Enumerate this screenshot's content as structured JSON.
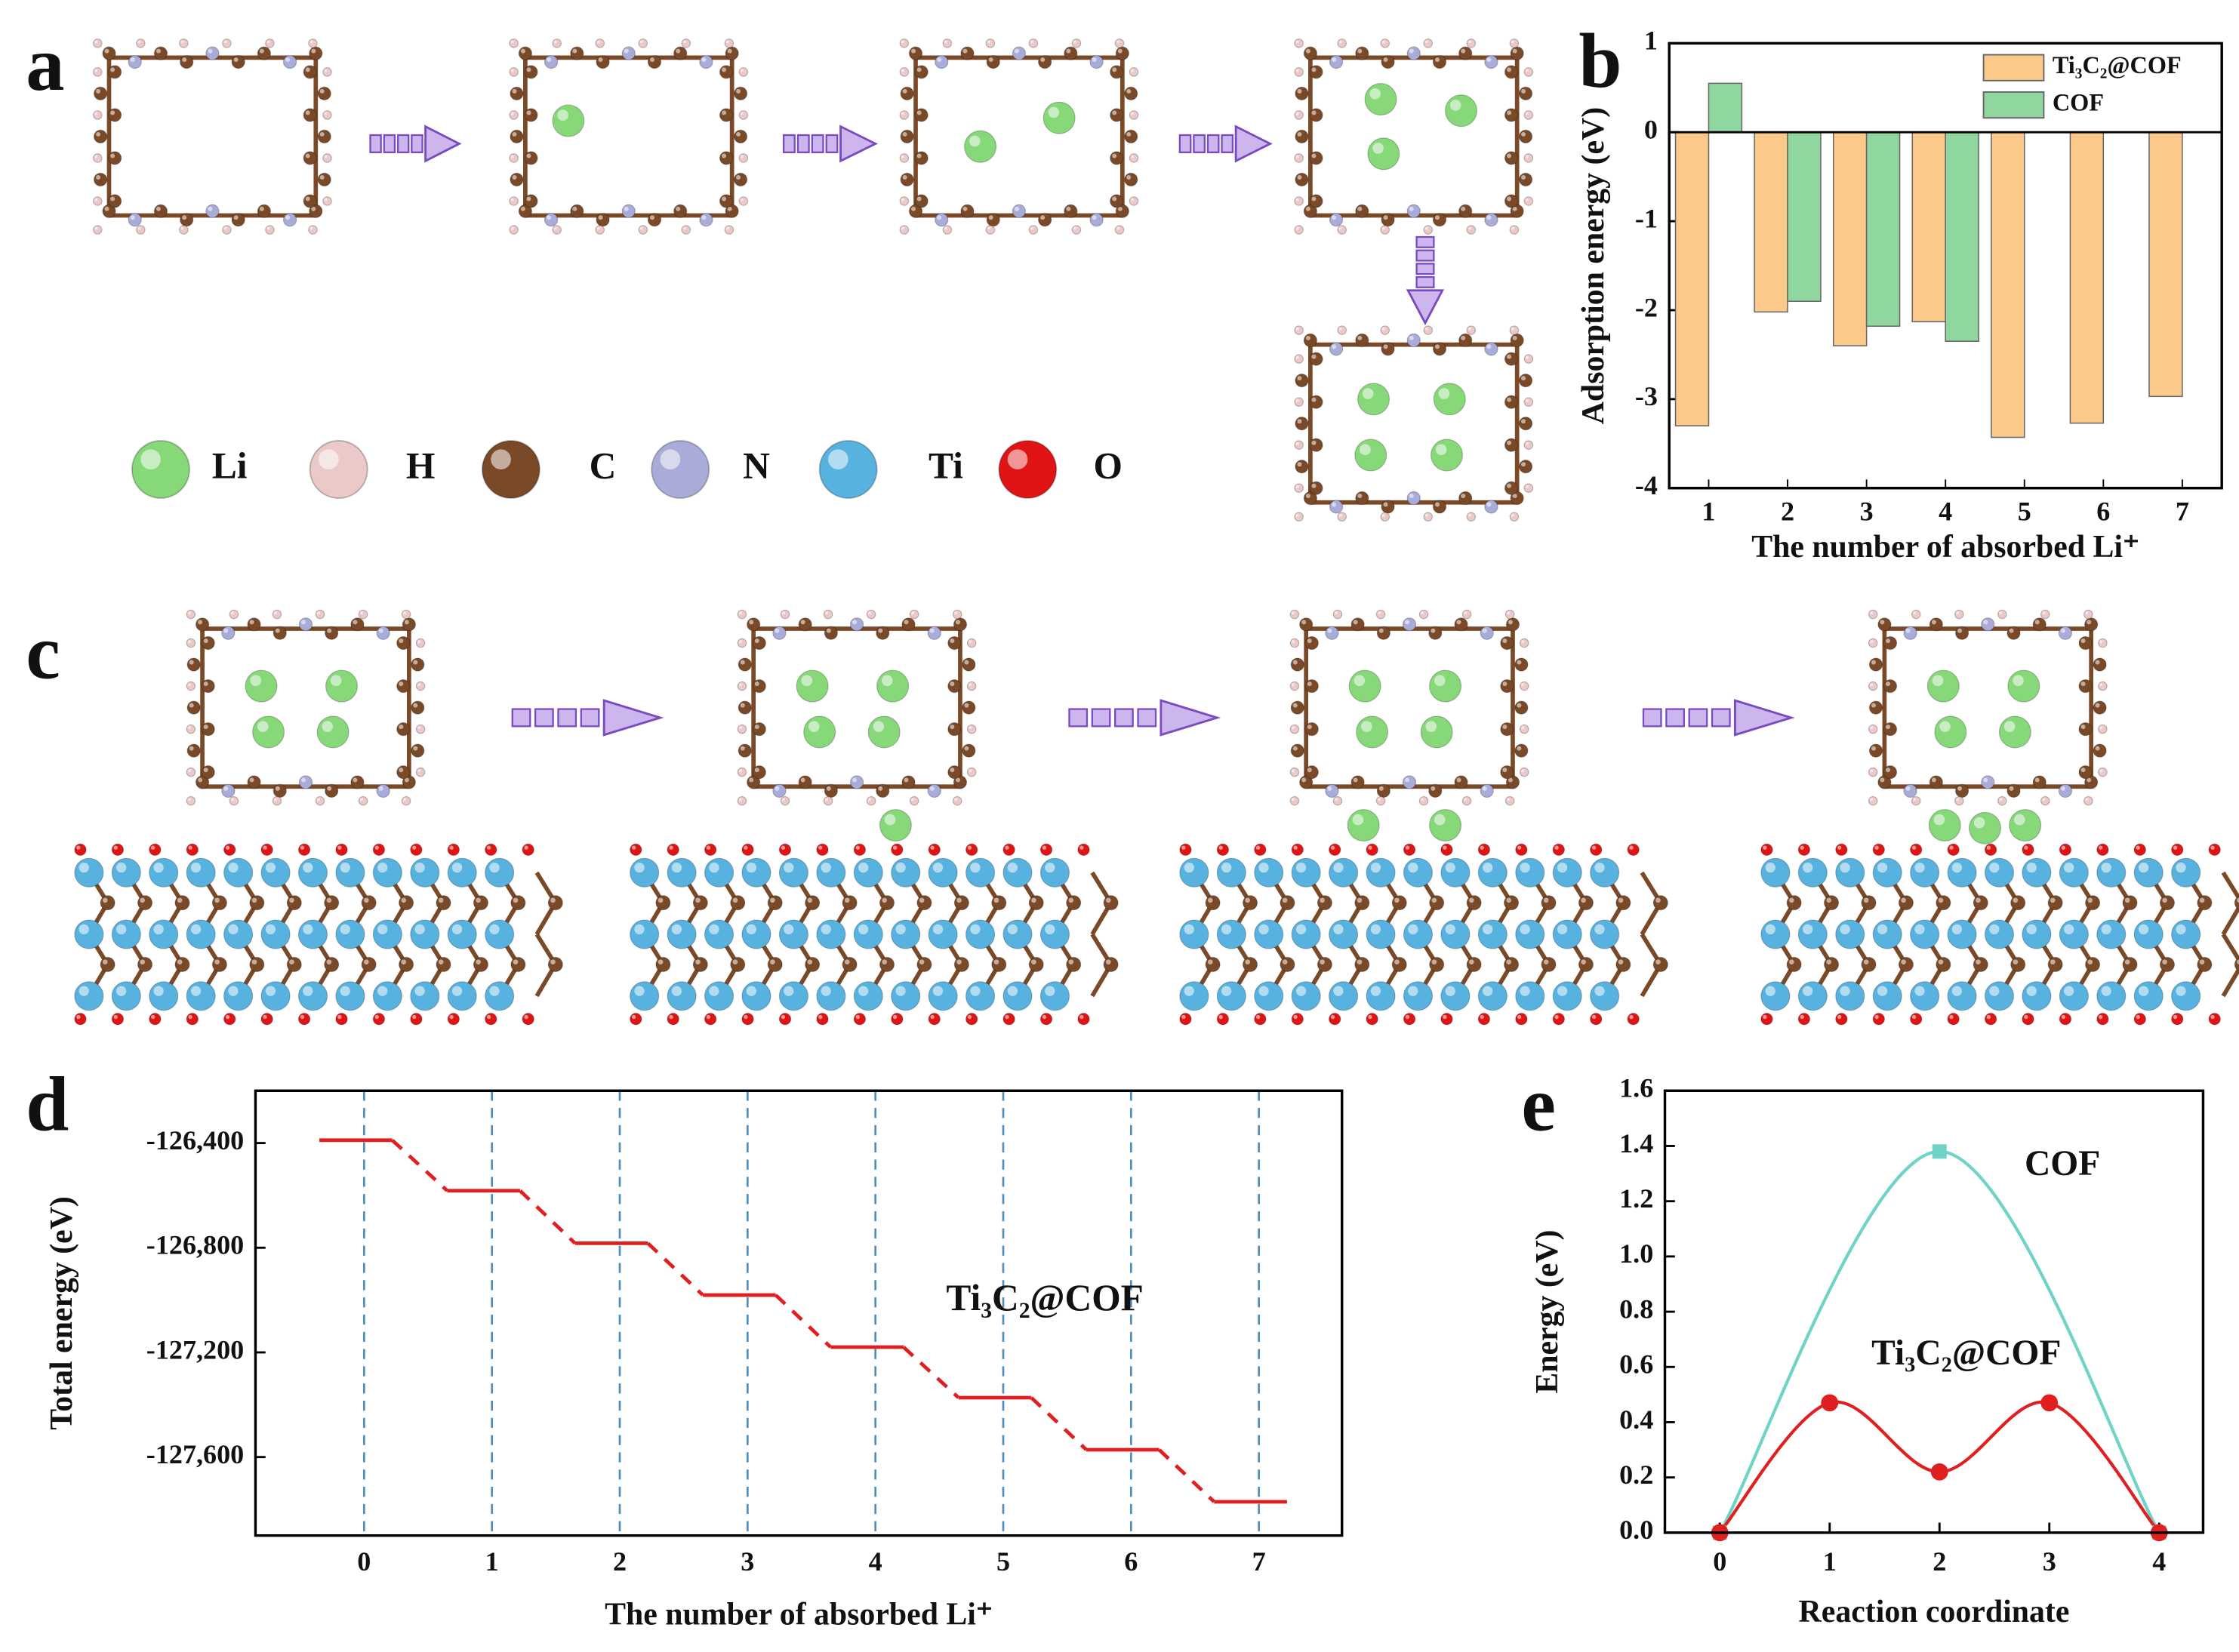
{
  "panel_labels": [
    "a",
    "b",
    "c",
    "d",
    "e"
  ],
  "atom_legend": [
    {
      "label": "Li",
      "color": "#86d878"
    },
    {
      "label": "H",
      "color": "#ecc9c9"
    },
    {
      "label": "C",
      "color": "#7a4a28"
    },
    {
      "label": "N",
      "color": "#a9acd8"
    },
    {
      "label": "Ti",
      "color": "#58b2e0"
    },
    {
      "label": "O",
      "color": "#e01414"
    }
  ],
  "chart_data": [
    {
      "type": "bar",
      "xlabel": "The number of absorbed Li⁺",
      "ylabel": "Adsorption energy (eV)",
      "categories": [
        "1",
        "2",
        "3",
        "4",
        "5",
        "6",
        "7"
      ],
      "series": [
        {
          "name": "Ti₃C₂@COF",
          "color": "#fbc98a",
          "values": [
            -3.3,
            -2.02,
            -2.4,
            -2.13,
            -3.43,
            -3.27,
            -2.97
          ]
        },
        {
          "name": "COF",
          "color": "#8fd79f",
          "values": [
            0.55,
            -1.9,
            -2.18,
            -2.35,
            null,
            null,
            null
          ]
        }
      ],
      "ylim": [
        -4,
        1
      ],
      "yticks": [
        -4,
        -3,
        -2,
        -1,
        0,
        1
      ],
      "legend": "upper right"
    },
    {
      "type": "step",
      "xlabel": "The number of absorbed Li⁺",
      "ylabel": "Total energy (eV)",
      "annotation": "Ti₃C₂@COF",
      "x": [
        0,
        1,
        2,
        3,
        4,
        5,
        6,
        7
      ],
      "values": [
        -126389,
        -126582,
        -126783,
        -126981,
        -127180,
        -127373,
        -127572,
        -127771
      ],
      "color": "#e02020",
      "xlim": [
        -0.85,
        7.65
      ],
      "xticks": [
        0,
        1,
        2,
        3,
        4,
        5,
        6,
        7
      ],
      "ylim": [
        -127900,
        -126200
      ],
      "yticks": [
        {
          "value": -126400,
          "label": "-126,400"
        },
        {
          "value": -126800,
          "label": "-126,800"
        },
        {
          "value": -127200,
          "label": "-127,200"
        },
        {
          "value": -127600,
          "label": "-127,600"
        }
      ],
      "grid": true
    },
    {
      "type": "line",
      "xlabel": "Reaction coordinate",
      "ylabel": "Energy (eV)",
      "series": [
        {
          "name": "COF",
          "color": "#6fd3c6",
          "marker": "square",
          "x": [
            0,
            2,
            4
          ],
          "values": [
            0,
            1.38,
            0
          ]
        },
        {
          "name": "Ti₃C₂@COF",
          "color": "#e02020",
          "marker": "circle",
          "x": [
            0,
            1,
            2,
            3,
            4
          ],
          "values": [
            0,
            0.47,
            0.22,
            0.47,
            0
          ]
        }
      ],
      "xlim": [
        -0.5,
        4.4
      ],
      "xticks": [
        0,
        1,
        2,
        3,
        4
      ],
      "ylim": [
        0,
        1.6
      ],
      "yticks": [
        {
          "value": 0,
          "label": "0.0"
        },
        0.2,
        0.4,
        0.6,
        0.8,
        {
          "value": 1,
          "label": "1.0"
        },
        1.2,
        1.4,
        1.6
      ]
    }
  ]
}
